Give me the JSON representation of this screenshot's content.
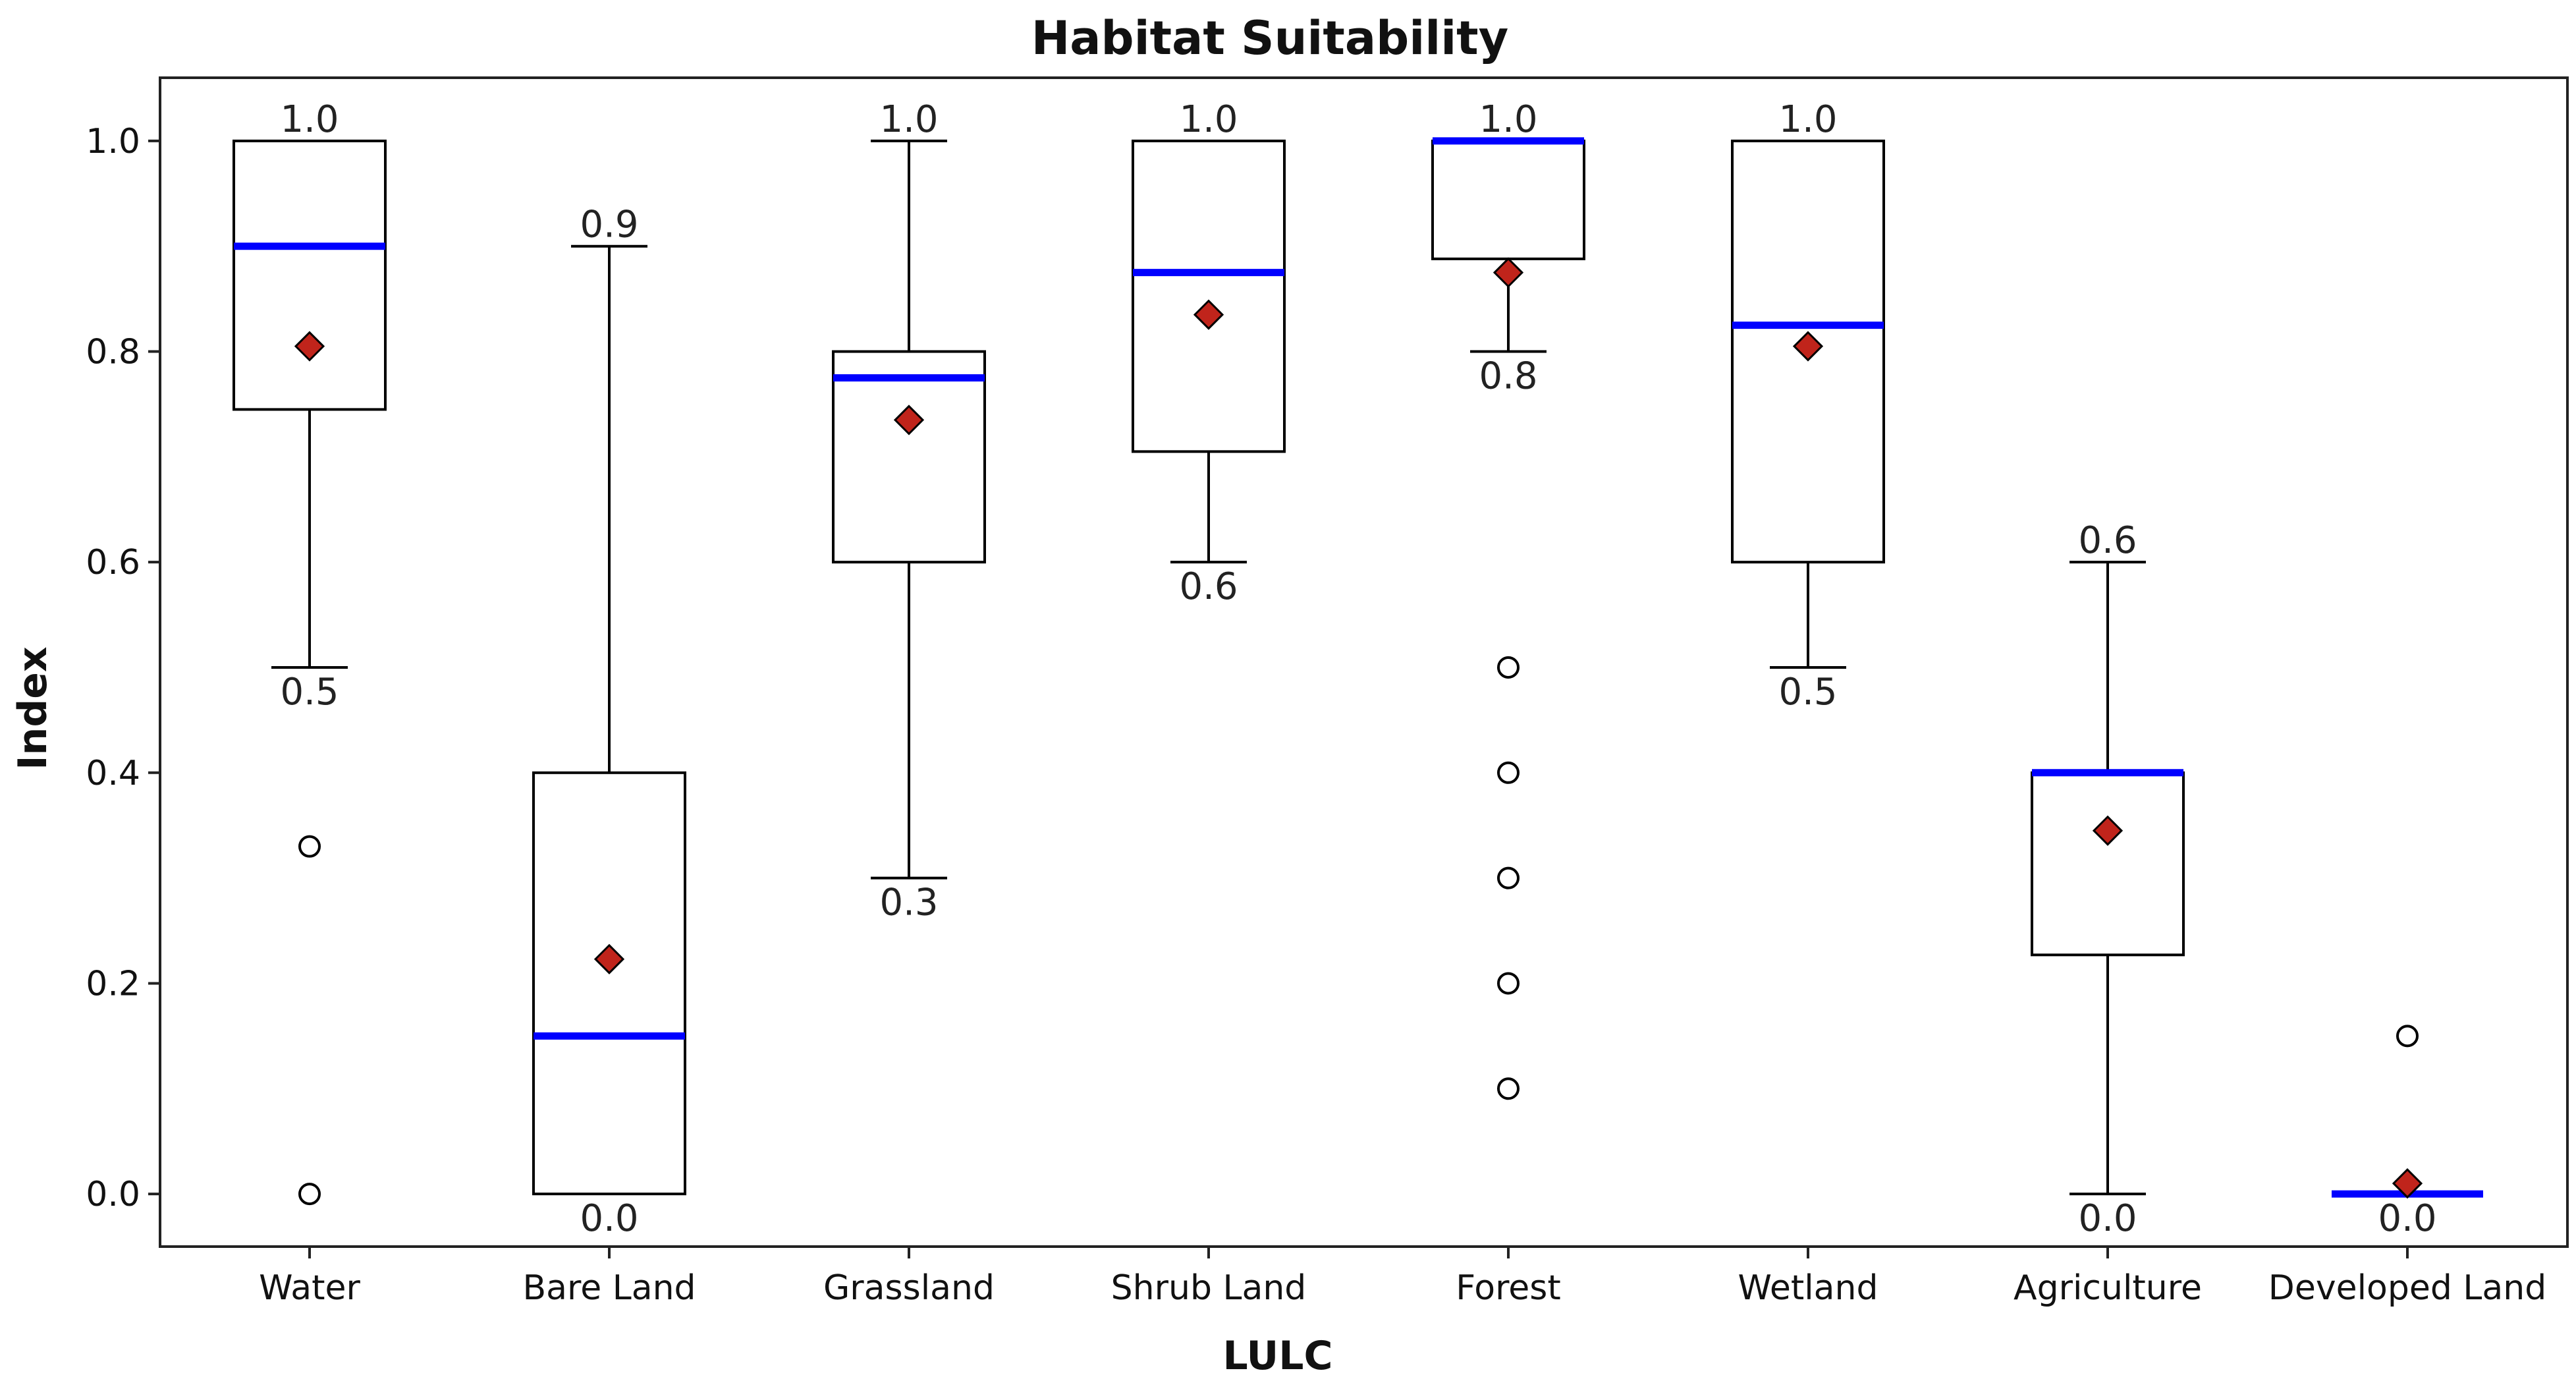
{
  "chart_data": {
    "type": "box",
    "title": "Habitat Suitability",
    "xlabel": "LULC",
    "ylabel": "Index",
    "ylim": [
      -0.05,
      1.06
    ],
    "yticks": [
      "0.0",
      "0.2",
      "0.4",
      "0.6",
      "0.8",
      "1.0"
    ],
    "ytick_values": [
      0.0,
      0.2,
      0.4,
      0.6,
      0.8,
      1.0
    ],
    "categories": [
      "Water",
      "Bare Land",
      "Grassland",
      "Shrub Land",
      "Forest",
      "Wetland",
      "Agriculture",
      "Developed Land"
    ],
    "colors": {
      "median": "#0000ff",
      "mean_fill": "#c0241b",
      "box": "#000000"
    },
    "boxes": [
      {
        "category": "Water",
        "q1": 0.745,
        "q3": 1.0,
        "median": 0.9,
        "mean": 0.805,
        "whisker_low": 0.5,
        "whisker_high": 1.0,
        "outliers": [
          0.33,
          0.0
        ],
        "annotations": [
          {
            "value": 1.0,
            "text": "1.0",
            "pos": "above"
          },
          {
            "value": 0.5,
            "text": "0.5",
            "pos": "below"
          }
        ]
      },
      {
        "category": "Bare Land",
        "q1": 0.0,
        "q3": 0.4,
        "median": 0.15,
        "mean": 0.223,
        "whisker_low": 0.0,
        "whisker_high": 0.9,
        "outliers": [],
        "annotations": [
          {
            "value": 0.9,
            "text": "0.9",
            "pos": "above"
          },
          {
            "value": 0.0,
            "text": "0.0",
            "pos": "below"
          }
        ]
      },
      {
        "category": "Grassland",
        "q1": 0.6,
        "q3": 0.8,
        "median": 0.775,
        "mean": 0.735,
        "whisker_low": 0.3,
        "whisker_high": 1.0,
        "outliers": [],
        "annotations": [
          {
            "value": 1.0,
            "text": "1.0",
            "pos": "above"
          },
          {
            "value": 0.3,
            "text": "0.3",
            "pos": "below"
          }
        ]
      },
      {
        "category": "Shrub Land",
        "q1": 0.705,
        "q3": 1.0,
        "median": 0.875,
        "mean": 0.835,
        "whisker_low": 0.6,
        "whisker_high": 1.0,
        "outliers": [],
        "annotations": [
          {
            "value": 1.0,
            "text": "1.0",
            "pos": "above"
          },
          {
            "value": 0.6,
            "text": "0.6",
            "pos": "below"
          }
        ]
      },
      {
        "category": "Forest",
        "q1": 0.888,
        "q3": 1.0,
        "median": 1.0,
        "mean": 0.875,
        "whisker_low": 0.8,
        "whisker_high": 1.0,
        "outliers": [
          0.5,
          0.4,
          0.3,
          0.2,
          0.1
        ],
        "annotations": [
          {
            "value": 1.0,
            "text": "1.0",
            "pos": "above"
          },
          {
            "value": 0.8,
            "text": "0.8",
            "pos": "below"
          }
        ]
      },
      {
        "category": "Wetland",
        "q1": 0.6,
        "q3": 1.0,
        "median": 0.825,
        "mean": 0.805,
        "whisker_low": 0.5,
        "whisker_high": 1.0,
        "outliers": [],
        "annotations": [
          {
            "value": 1.0,
            "text": "1.0",
            "pos": "above"
          },
          {
            "value": 0.5,
            "text": "0.5",
            "pos": "below"
          }
        ]
      },
      {
        "category": "Agriculture",
        "q1": 0.227,
        "q3": 0.4,
        "median": 0.4,
        "mean": 0.345,
        "whisker_low": 0.0,
        "whisker_high": 0.6,
        "outliers": [],
        "annotations": [
          {
            "value": 0.6,
            "text": "0.6",
            "pos": "above"
          },
          {
            "value": 0.0,
            "text": "0.0",
            "pos": "below"
          }
        ]
      },
      {
        "category": "Developed Land",
        "q1": 0.0,
        "q3": 0.0,
        "median": 0.0,
        "mean": 0.01,
        "whisker_low": 0.0,
        "whisker_high": 0.0,
        "outliers": [
          0.15
        ],
        "annotations": [
          {
            "value": 0.0,
            "text": "0.0",
            "pos": "below"
          }
        ]
      }
    ]
  }
}
